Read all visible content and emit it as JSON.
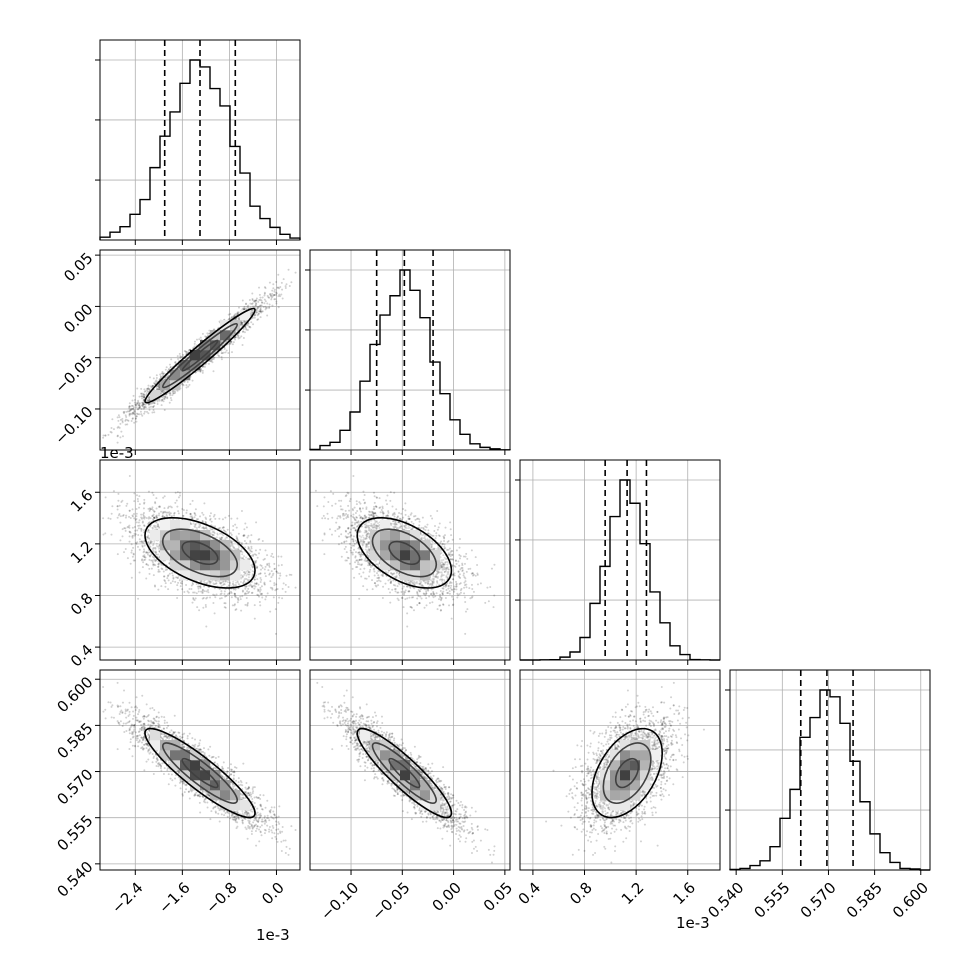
{
  "chart_data": {
    "type": "corner",
    "grid": true,
    "offset_label": "1e-3",
    "parameters": [
      {
        "index": 0,
        "range": [
          -3.0,
          0.4
        ],
        "scale": 0.001,
        "ticks": [
          -2.4,
          -1.6,
          -0.8,
          0.0
        ],
        "tick_labels": [
          "−2.4",
          "−1.6",
          "−0.8",
          "0.0"
        ],
        "offset_label": "1e-3",
        "quantiles": [
          -1.9,
          -1.3,
          -0.7
        ],
        "mean": -1.3,
        "sd": 0.55
      },
      {
        "index": 1,
        "range": [
          -0.14,
          0.055
        ],
        "scale": 1,
        "ticks": [
          -0.1,
          -0.05,
          0.0,
          0.05
        ],
        "tick_labels": [
          "−0.10",
          "−0.05",
          "0.00",
          "0.05"
        ],
        "offset_label": "",
        "quantiles": [
          -0.075,
          -0.048,
          -0.02
        ],
        "mean": -0.048,
        "sd": 0.027
      },
      {
        "index": 2,
        "range": [
          0.3,
          1.85
        ],
        "scale": 0.001,
        "ticks": [
          0.4,
          0.8,
          1.2,
          1.6
        ],
        "tick_labels": [
          "0.4",
          "0.8",
          "1.2",
          "1.6"
        ],
        "offset_label": "1e-3",
        "quantiles": [
          0.96,
          1.13,
          1.28
        ],
        "mean": 1.13,
        "sd": 0.16
      },
      {
        "index": 3,
        "range": [
          0.538,
          0.603
        ],
        "scale": 1,
        "ticks": [
          0.54,
          0.555,
          0.57,
          0.585,
          0.6
        ],
        "tick_labels": [
          "0.540",
          "0.555",
          "0.570",
          "0.585",
          "0.600"
        ],
        "offset_label": "",
        "quantiles": [
          0.561,
          0.5695,
          0.578
        ],
        "mean": 0.5695,
        "sd": 0.0085
      }
    ],
    "correlations": [
      [
        1,
        0.97,
        -0.5,
        -0.9
      ],
      [
        0.97,
        1,
        -0.5,
        -0.9
      ],
      [
        -0.5,
        -0.5,
        1,
        0.45
      ],
      [
        -0.9,
        -0.9,
        0.45,
        1
      ]
    ],
    "histogram_bins": 20,
    "contour_levels": 3
  }
}
